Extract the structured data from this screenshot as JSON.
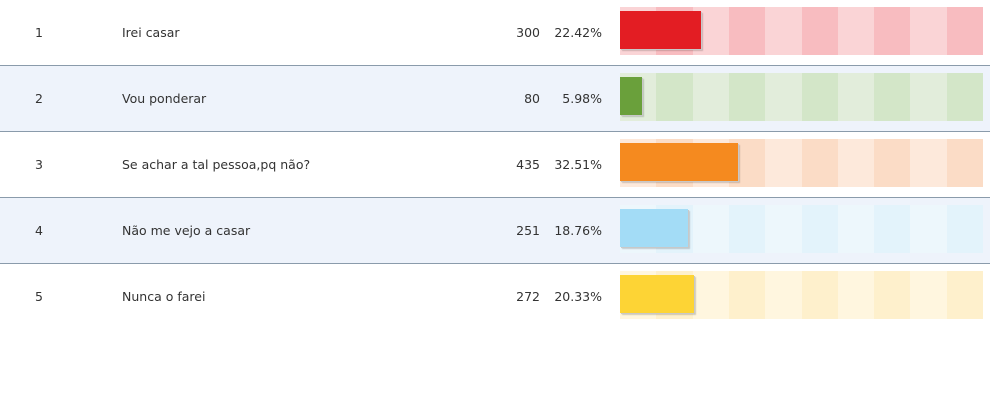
{
  "rows": [
    {
      "rank": "1",
      "answer": "Irei casar",
      "votes": "300",
      "percent_label": "22.42%",
      "percent": 22.42,
      "fill_color": "#e31d23",
      "stripe_light": "#fad4d6",
      "stripe_dark": "#f8bcc0"
    },
    {
      "rank": "2",
      "answer": "Vou ponderar",
      "votes": "80",
      "percent_label": "5.98%",
      "percent": 5.98,
      "fill_color": "#6aa03b",
      "stripe_light": "#e2eddb",
      "stripe_dark": "#d3e6c8"
    },
    {
      "rank": "3",
      "answer": "Se achar a tal pessoa,pq não?",
      "votes": "435",
      "percent_label": "32.51%",
      "percent": 32.51,
      "fill_color": "#f58a1f",
      "stripe_light": "#fde9db",
      "stripe_dark": "#fbdcc6"
    },
    {
      "rank": "4",
      "answer": "Não me vejo a casar",
      "votes": "251",
      "percent_label": "18.76%",
      "percent": 18.76,
      "fill_color": "#a3dcf6",
      "stripe_light": "#edf7fc",
      "stripe_dark": "#e3f3fb"
    },
    {
      "rank": "5",
      "answer": "Nunca o farei",
      "votes": "272",
      "percent_label": "20.33%",
      "percent": 20.33,
      "fill_color": "#fdd435",
      "stripe_light": "#fff6df",
      "stripe_dark": "#fef0cc"
    }
  ]
}
